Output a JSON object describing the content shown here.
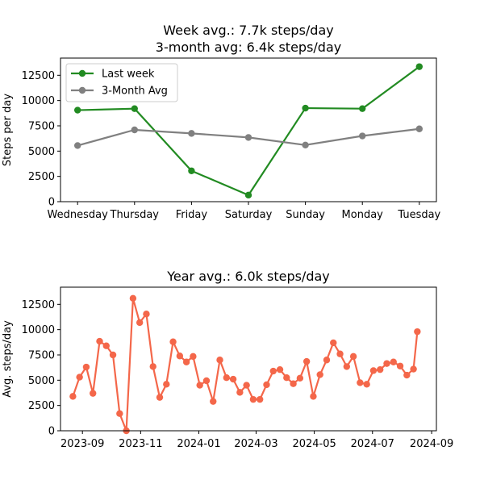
{
  "chart_data": [
    {
      "type": "line",
      "title_lines": [
        "Week avg.: 7.7k steps/day",
        "3-month avg: 6.4k steps/day"
      ],
      "xlabel": "",
      "ylabel": "Steps per day",
      "categories": [
        "Wednesday",
        "Thursday",
        "Friday",
        "Saturday",
        "Sunday",
        "Monday",
        "Tuesday"
      ],
      "ylim": [
        0,
        14200
      ],
      "yticks": [
        0,
        2500,
        5000,
        7500,
        10000,
        12500
      ],
      "legend_position": "top-left",
      "grid": false,
      "series": [
        {
          "name": "Last week",
          "color": "#228b22",
          "values": [
            9050,
            9200,
            3050,
            650,
            9250,
            9200,
            13350
          ]
        },
        {
          "name": "3-Month Avg",
          "color": "#808080",
          "values": [
            5550,
            7100,
            6750,
            6350,
            5600,
            6500,
            7200
          ]
        }
      ]
    },
    {
      "type": "line",
      "title": "Year avg.: 6.0k steps/day",
      "xlabel": "",
      "ylabel": "Avg. steps/day",
      "ylim": [
        0,
        14200
      ],
      "yticks": [
        0,
        2500,
        5000,
        7500,
        10000,
        12500
      ],
      "xlim": [
        "2023-08-09",
        "2024-09-06"
      ],
      "xticks": [
        "2023-09-01",
        "2023-11-01",
        "2024-01-01",
        "2024-03-01",
        "2024-05-01",
        "2024-07-01",
        "2024-09-01"
      ],
      "xtick_labels": [
        "2023-09",
        "2023-11",
        "2024-01",
        "2024-03",
        "2024-05",
        "2024-07",
        "2024-09"
      ],
      "grid": false,
      "series": [
        {
          "color": "#f4674a",
          "x": [
            "2023-08-22",
            "2023-08-29",
            "2023-09-05",
            "2023-09-12",
            "2023-09-19",
            "2023-09-26",
            "2023-10-03",
            "2023-10-10",
            "2023-10-17",
            "2023-10-24",
            "2023-10-31",
            "2023-11-07",
            "2023-11-14",
            "2023-11-21",
            "2023-11-28",
            "2023-12-05",
            "2023-12-12",
            "2023-12-19",
            "2023-12-26",
            "2024-01-02",
            "2024-01-09",
            "2024-01-16",
            "2024-01-23",
            "2024-01-30",
            "2024-02-06",
            "2024-02-13",
            "2024-02-20",
            "2024-02-27",
            "2024-03-05",
            "2024-03-12",
            "2024-03-19",
            "2024-03-26",
            "2024-04-02",
            "2024-04-09",
            "2024-04-16",
            "2024-04-23",
            "2024-04-30",
            "2024-05-07",
            "2024-05-14",
            "2024-05-21",
            "2024-05-28",
            "2024-06-04",
            "2024-06-11",
            "2024-06-18",
            "2024-06-25",
            "2024-07-02",
            "2024-07-09",
            "2024-07-16",
            "2024-07-23",
            "2024-07-30",
            "2024-08-06",
            "2024-08-13"
          ],
          "values": [
            3400,
            5300,
            6300,
            3700,
            8850,
            8400,
            7500,
            1700,
            0,
            13100,
            10700,
            11550,
            6350,
            3300,
            4600,
            8800,
            7400,
            6800,
            7350,
            4500,
            4950,
            2900,
            7000,
            5250,
            5100,
            3800,
            4500,
            3100,
            3100,
            4550,
            5900,
            6050,
            5250,
            4650,
            5200,
            6850,
            3400,
            5550,
            7000,
            8700,
            7600,
            6350,
            7350,
            4750,
            4600,
            5950,
            6050,
            6650,
            6800,
            6400,
            5500,
            6100
          ]
        }
      ],
      "last_point": {
        "x": "2024-08-17",
        "value": 9800
      }
    }
  ]
}
